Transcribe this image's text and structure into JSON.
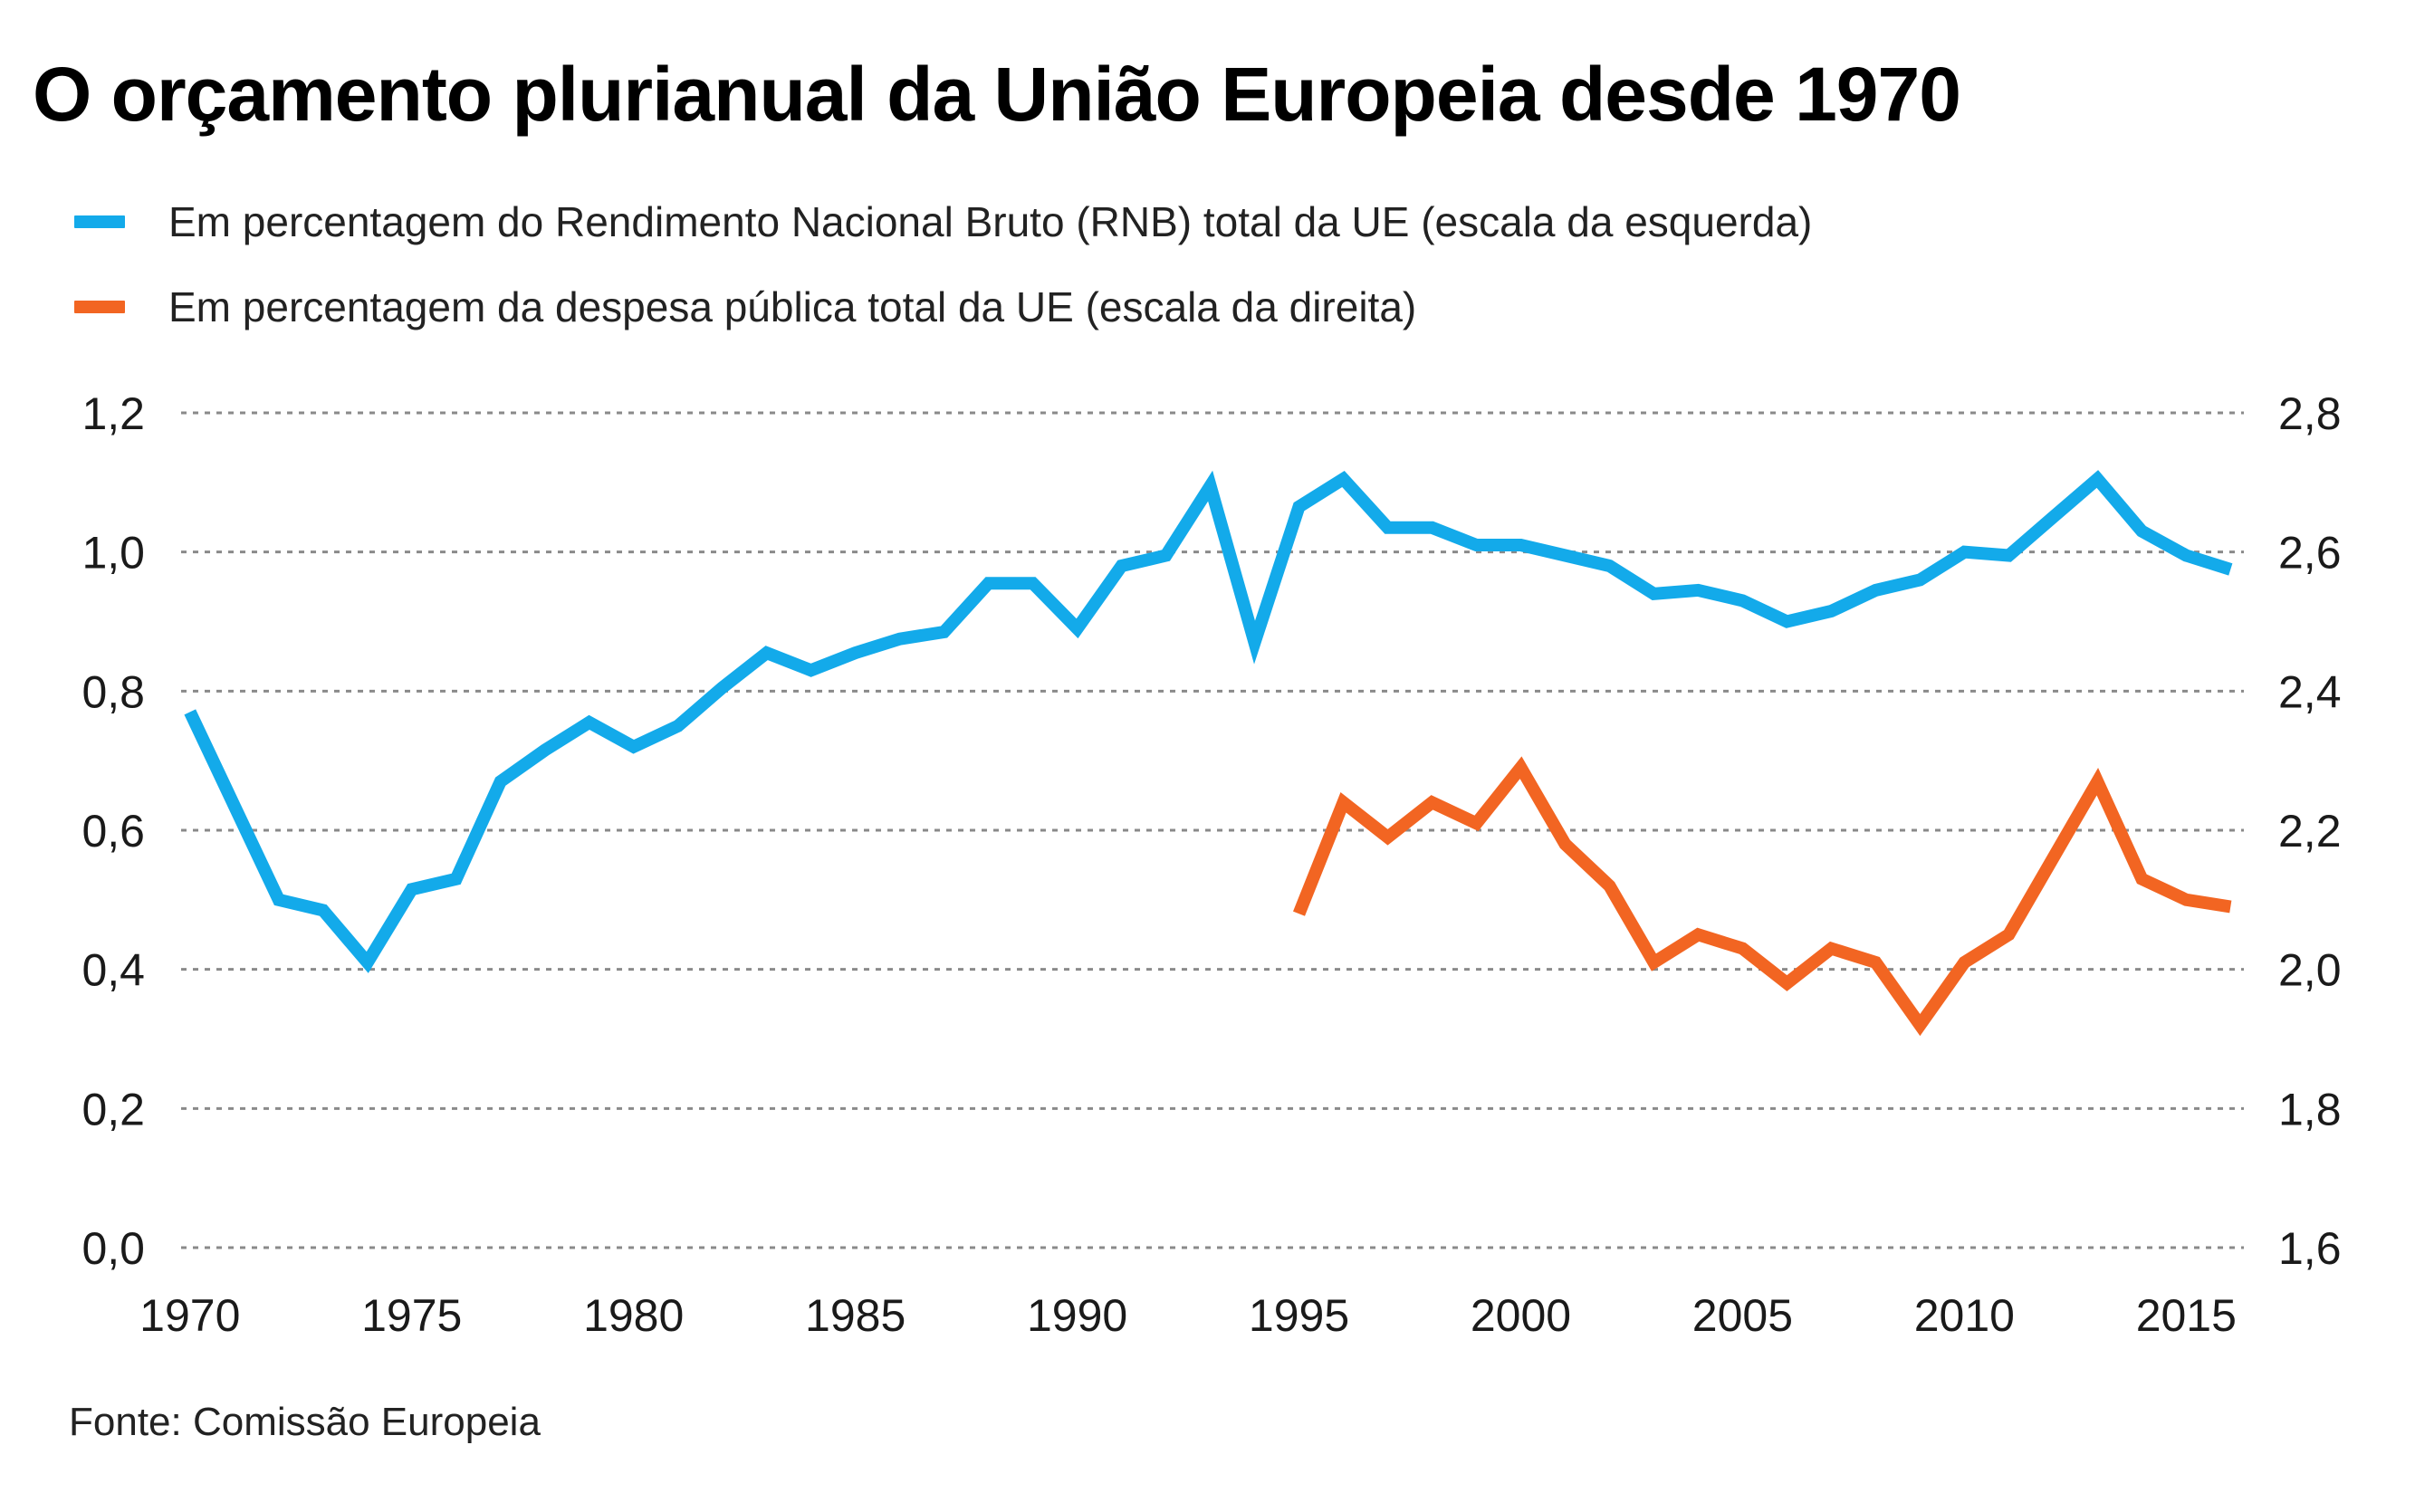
{
  "title": "O orçamento plurianual da União Europeia desde 1970",
  "source": "Fonte: Comissão Europeia",
  "colors": {
    "blue": "#13aaea",
    "orange": "#f26522",
    "grid": "#8a8a8a"
  },
  "chart_data": {
    "type": "line",
    "title": "O orçamento plurianual da União Europeia desde 1970",
    "xlabel": "",
    "ylabel_left": "",
    "ylabel_right": "",
    "x_ticks": [
      "1970",
      "1975",
      "1980",
      "1985",
      "1990",
      "1995",
      "2000",
      "2005",
      "2010",
      "2015"
    ],
    "x_tick_values": [
      1970,
      1975,
      1980,
      1985,
      1990,
      1995,
      2000,
      2005,
      2010,
      2015
    ],
    "xlim": [
      1969.8,
      2016.3
    ],
    "ylim_left": [
      0,
      1.2
    ],
    "ylim_right": [
      1.6,
      2.8
    ],
    "y_ticks_left": [
      "0,0",
      "0,2",
      "0,4",
      "0,6",
      "0,8",
      "1,0",
      "1,2"
    ],
    "y_tick_values_left": [
      0,
      0.2,
      0.4,
      0.6,
      0.8,
      1.0,
      1.2
    ],
    "y_ticks_right": [
      "1,6",
      "1,8",
      "2,0",
      "2,2",
      "2,4",
      "2,6",
      "2,8"
    ],
    "y_tick_values_right": [
      1.6,
      1.8,
      2.0,
      2.2,
      2.4,
      2.6,
      2.8
    ],
    "grid": true,
    "legend_position": "top-left",
    "series": [
      {
        "name": "Em percentagem do Rendimento Nacional Bruto (RNB) total da UE (escala da esquerda)",
        "axis": "left",
        "color": "#13aaea",
        "x": [
          1970,
          1971,
          1972,
          1973,
          1974,
          1975,
          1976,
          1977,
          1978,
          1979,
          1980,
          1981,
          1982,
          1983,
          1984,
          1985,
          1986,
          1987,
          1988,
          1989,
          1990,
          1991,
          1992,
          1993,
          1994,
          1995,
          1996,
          1997,
          1998,
          1999,
          2000,
          2001,
          2002,
          2003,
          2004,
          2005,
          2006,
          2007,
          2008,
          2009,
          2010,
          2011,
          2012,
          2013,
          2014,
          2015,
          2016
        ],
        "values": [
          0.77,
          0.635,
          0.5,
          0.485,
          0.41,
          0.515,
          0.53,
          0.67,
          0.715,
          0.755,
          0.72,
          0.75,
          0.805,
          0.855,
          0.83,
          0.855,
          0.875,
          0.885,
          0.955,
          0.955,
          0.89,
          0.98,
          0.995,
          1.095,
          0.87,
          1.065,
          1.105,
          1.035,
          1.035,
          1.01,
          1.01,
          0.995,
          0.98,
          0.94,
          0.945,
          0.93,
          0.9,
          0.915,
          0.945,
          0.96,
          1.0,
          0.995,
          1.05,
          1.105,
          1.03,
          0.995,
          0.975
        ]
      },
      {
        "name": "Em percentagem da despesa pública total da UE (escala da direita)",
        "axis": "right",
        "color": "#f26522",
        "x": [
          1995,
          1996,
          1997,
          1998,
          1999,
          2000,
          2001,
          2002,
          2003,
          2004,
          2005,
          2006,
          2007,
          2008,
          2009,
          2010,
          2011,
          2012,
          2013,
          2014,
          2015,
          2016
        ],
        "values": [
          2.08,
          2.24,
          2.19,
          2.24,
          2.21,
          2.29,
          2.18,
          2.12,
          2.01,
          2.05,
          2.03,
          1.98,
          2.03,
          2.01,
          1.92,
          2.01,
          2.05,
          2.16,
          2.27,
          2.13,
          2.1,
          2.09
        ]
      }
    ]
  }
}
